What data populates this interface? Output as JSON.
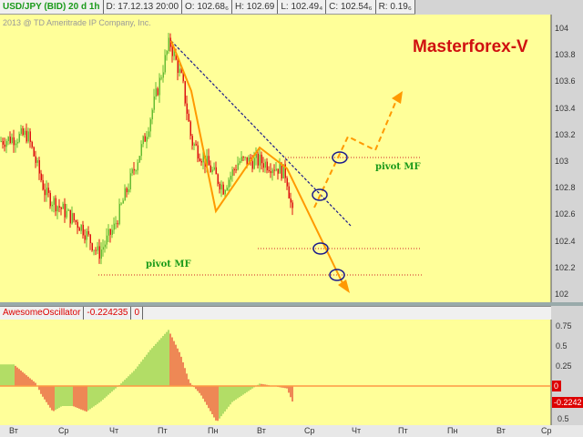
{
  "header": {
    "symbol": "USD/JPY (BID) 20 d 1h",
    "date": "D: 17.12.13 20:00",
    "open": "O: 102.68₆",
    "high": "H: 102.69",
    "low": "L: 102.49₄",
    "close": "C: 102.54₆",
    "range": "R: 0.19₆"
  },
  "copyright": "2013 @ TD Ameritrade IP Company, Inc.",
  "brand": "Masterforex-V",
  "pivot_label": "pivot MF",
  "price_axis": [
    "104",
    "103.8",
    "103.6",
    "103.4",
    "103.2",
    "103",
    "102.8",
    "102.6",
    "102.4",
    "102.2",
    "102"
  ],
  "indicator": {
    "name": "AwesomeOscillator",
    "value": "-0.224235",
    "param": "0",
    "axis": [
      "0.75",
      "0.5",
      "0.25",
      "0.5"
    ],
    "zero_label": "0",
    "current": "-0.2242"
  },
  "time_axis": [
    "Вт",
    "Ср",
    "Чт",
    "Пт",
    "Пн",
    "Вт",
    "Ср",
    "Чт",
    "Пт",
    "Пн",
    "Вт",
    "Ср"
  ],
  "colors": {
    "background": "#ffff99",
    "up": "#66bb33",
    "down": "#dd1111",
    "annotation": "#ff9900",
    "trendline": "#1a1a8c",
    "brand": "#d01010"
  }
}
